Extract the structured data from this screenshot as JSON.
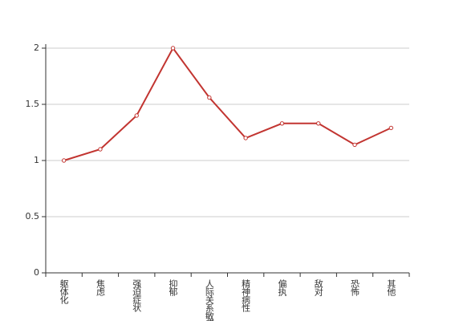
{
  "chart_data": {
    "type": "line",
    "categories": [
      "躯体化",
      "焦虑",
      "强迫症状",
      "抑郁",
      "人际关系敏感",
      "精神病性",
      "偏执",
      "敌对",
      "恐怖",
      "其他"
    ],
    "series": [
      {
        "color": "#c23531",
        "values": [
          1,
          1.1,
          1.4,
          2,
          1.56,
          1.2,
          1.33,
          1.33,
          1.14,
          1.29
        ]
      }
    ],
    "ylim": [
      0,
      2
    ],
    "yticks": [
      0,
      0.5,
      1,
      1.5,
      2
    ],
    "grid": true
  }
}
